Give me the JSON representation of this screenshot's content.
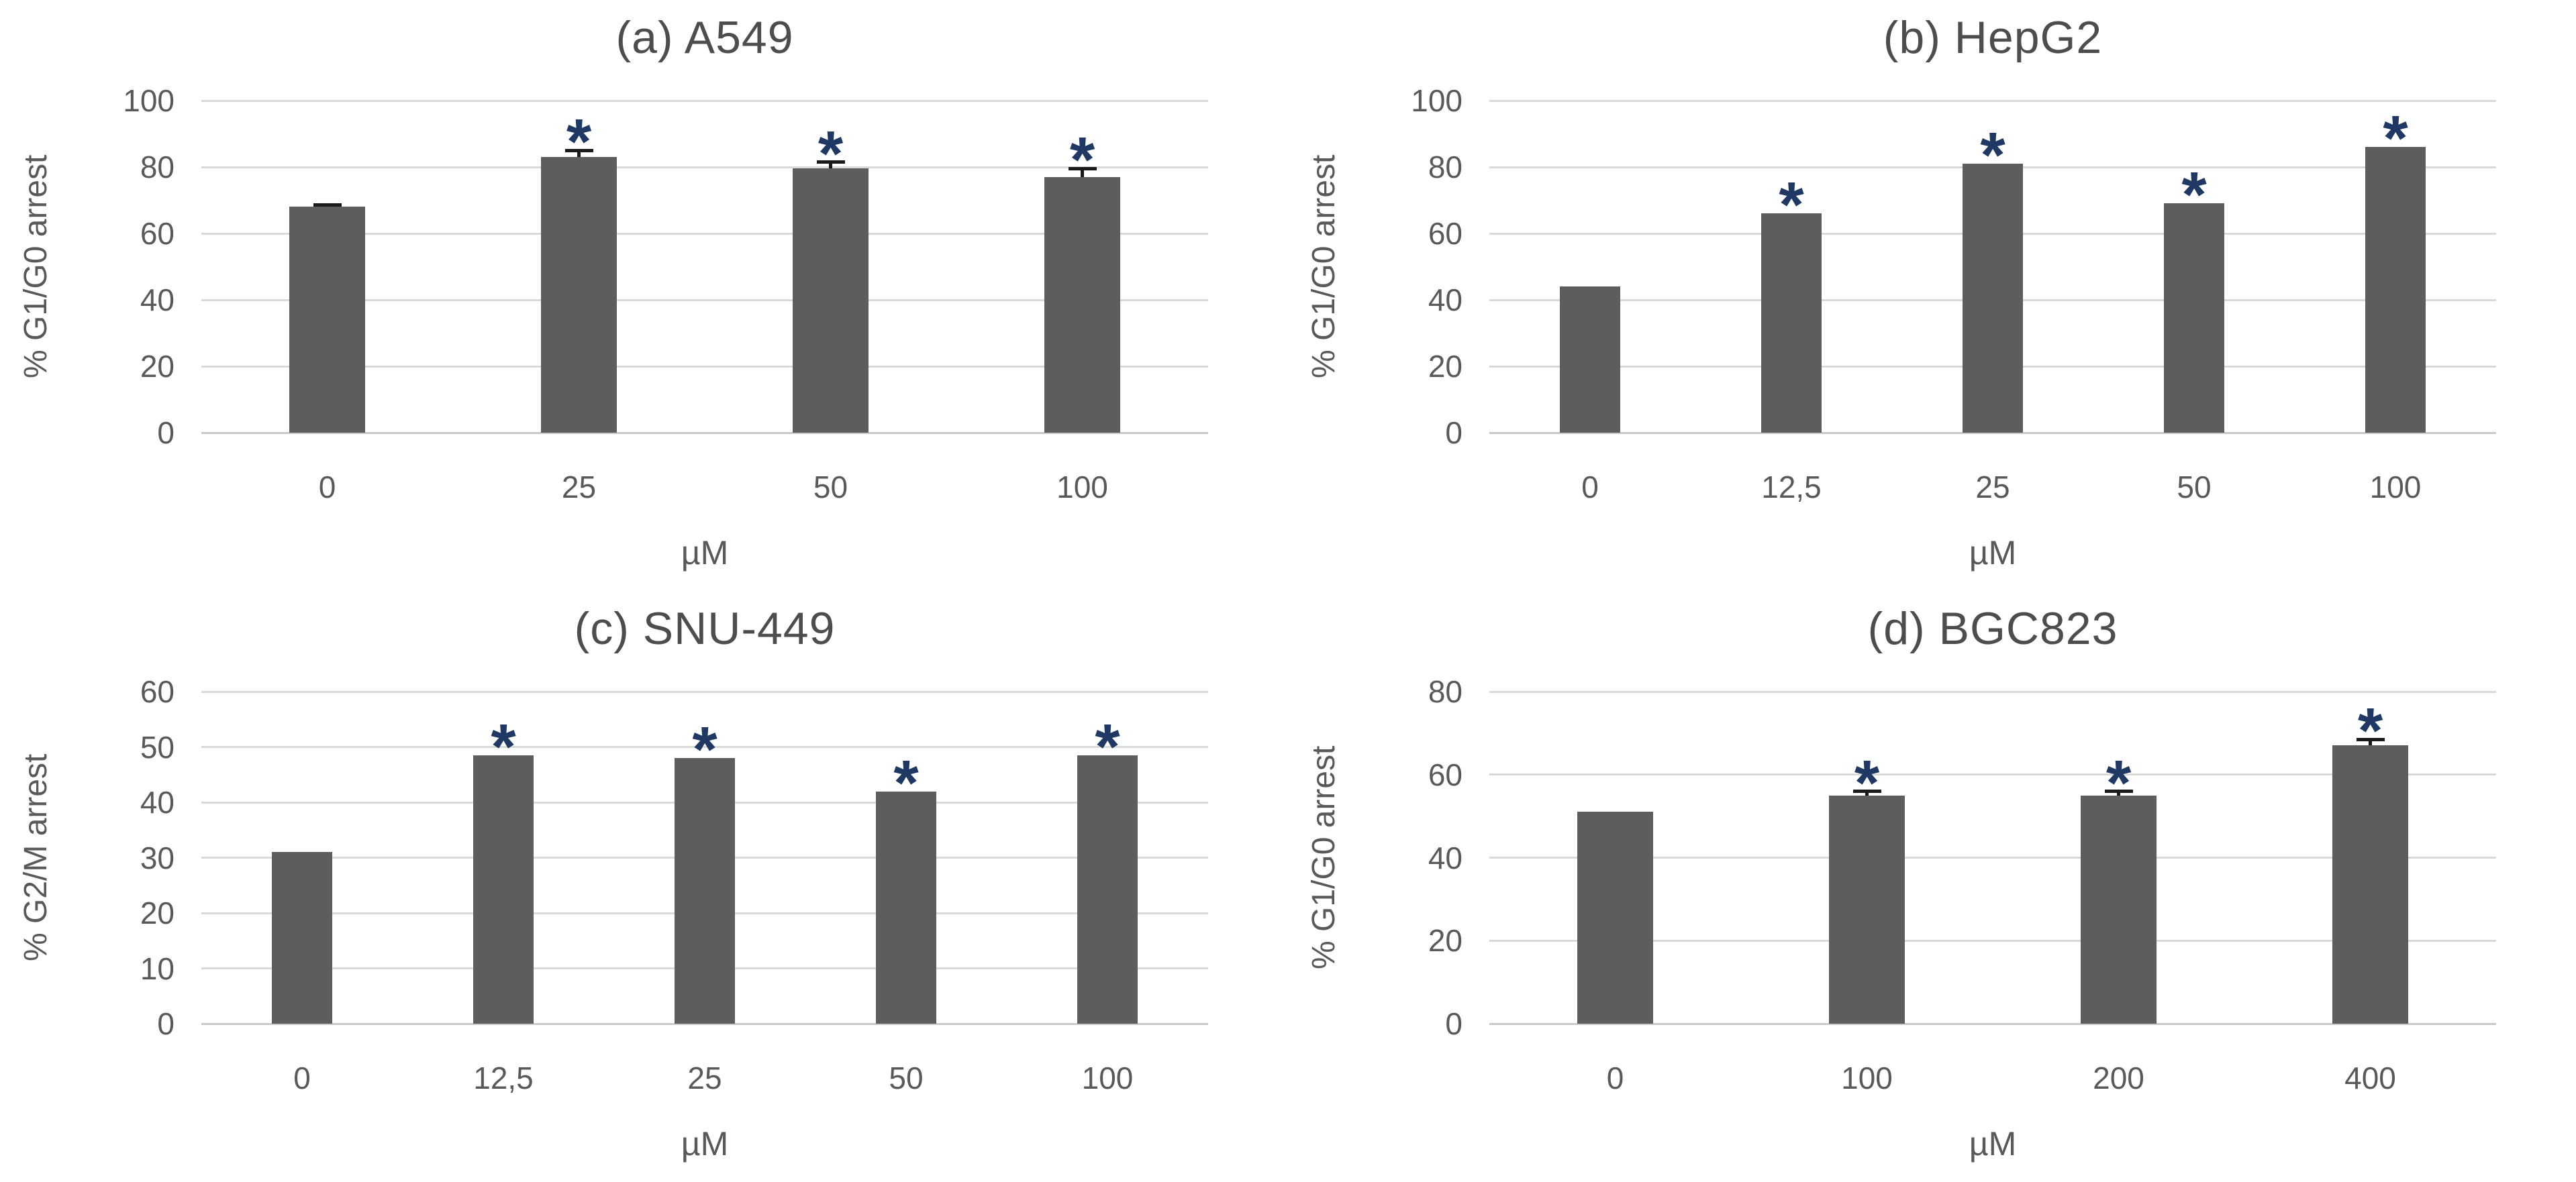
{
  "figure": {
    "background": "#ffffff",
    "panels_layout": "2x2"
  },
  "styles": {
    "bar_color": "#5d5d5d",
    "grid_color": "#d9d9d9",
    "baseline_color": "#c9c9c9",
    "title_color": "#4d4d4d",
    "tick_color": "#595959",
    "error_bar_color": "#1a1a1a",
    "asterisk_color": "#1f3864"
  },
  "significance_marker": "*",
  "chart_data": [
    {
      "type": "bar",
      "panel": "a",
      "title": "(a) A549",
      "ylabel": "% G1/G0 arrest",
      "xlabel": "µM",
      "categories": [
        "0",
        "25",
        "50",
        "100"
      ],
      "values": [
        68,
        83,
        79.5,
        77
      ],
      "errors": [
        0.5,
        2,
        2,
        2.5
      ],
      "significant": [
        false,
        true,
        true,
        true
      ],
      "ylim": [
        0,
        100
      ],
      "yticks": [
        0,
        20,
        40,
        60,
        80,
        100
      ],
      "grid": true,
      "legend": "none"
    },
    {
      "type": "bar",
      "panel": "b",
      "title": "(b) HepG2",
      "ylabel": "% G1/G0 arrest",
      "xlabel": "µM",
      "categories": [
        "0",
        "12,5",
        "25",
        "50",
        "100"
      ],
      "values": [
        44,
        66,
        81,
        69,
        86
      ],
      "errors": [
        0,
        0,
        0,
        0,
        0
      ],
      "significant": [
        false,
        true,
        true,
        true,
        true
      ],
      "ylim": [
        0,
        100
      ],
      "yticks": [
        0,
        20,
        40,
        60,
        80,
        100
      ],
      "grid": true,
      "legend": "none"
    },
    {
      "type": "bar",
      "panel": "c",
      "title": "(c) SNU-449",
      "ylabel": "% G2/M arrest",
      "xlabel": "µM",
      "categories": [
        "0",
        "12,5",
        "25",
        "50",
        "100"
      ],
      "values": [
        31,
        48.5,
        48,
        42,
        48.5
      ],
      "errors": [
        0,
        0,
        0,
        0,
        0
      ],
      "significant": [
        false,
        true,
        true,
        true,
        true
      ],
      "ylim": [
        0,
        60
      ],
      "yticks": [
        0,
        10,
        20,
        30,
        40,
        50,
        60
      ],
      "grid": true,
      "legend": "none"
    },
    {
      "type": "bar",
      "panel": "d",
      "title": "(d) BGC823",
      "ylabel": "% G1/G0 arrest",
      "xlabel": "µM",
      "categories": [
        "0",
        "100",
        "200",
        "400"
      ],
      "values": [
        51,
        55,
        55,
        67
      ],
      "errors": [
        0,
        1,
        1,
        1.5
      ],
      "significant": [
        false,
        true,
        true,
        true
      ],
      "ylim": [
        0,
        80
      ],
      "yticks": [
        0,
        20,
        40,
        60,
        80
      ],
      "grid": true,
      "legend": "none"
    }
  ]
}
